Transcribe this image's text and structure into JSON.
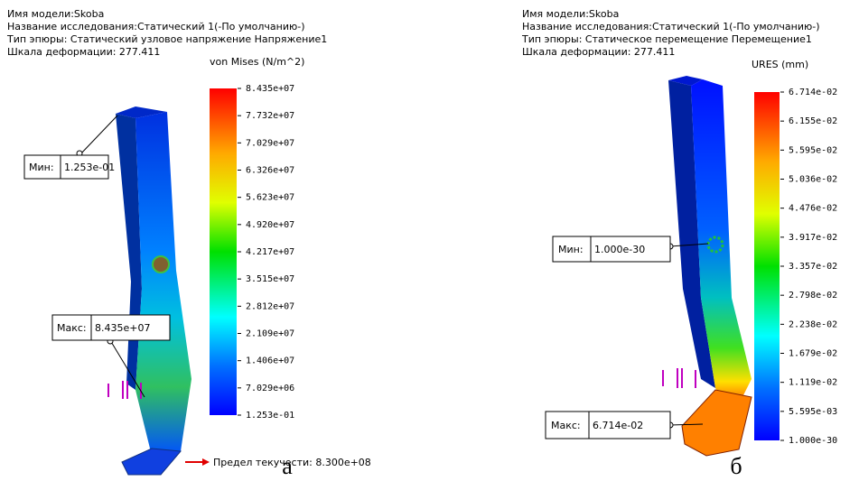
{
  "panels": [
    {
      "header": [
        "Имя модели:Skoba",
        "Название исследования:Статический 1(-По умолчанию-)",
        "Тип эпюры: Статический узловое напряжение Напряжение1",
        "Шкала деформации: 277.411"
      ],
      "legend_title": "von Mises (N/m^2)",
      "legend_labels": [
        "8.435e+07",
        "7.732e+07",
        "7.029e+07",
        "6.326e+07",
        "5.623e+07",
        "4.920e+07",
        "4.217e+07",
        "3.515e+07",
        "2.812e+07",
        "2.109e+07",
        "1.406e+07",
        "7.029e+06",
        "1.253e-01"
      ],
      "min_label": "Мин:",
      "min_value": "1.253e-01",
      "max_label": "Макс:",
      "max_value": "8.435e+07",
      "yield_text": "Предел текучести: 8.300e+08",
      "caption": "а"
    },
    {
      "header": [
        "Имя модели:Skoba",
        "Название исследования:Статический 1(-По умолчанию-)",
        "Тип эпюры: Статическое перемещение Перемещение1",
        "Шкала деформации: 277.411"
      ],
      "legend_title": "URES (mm)",
      "legend_labels": [
        "6.714e-02",
        "6.155e-02",
        "5.595e-02",
        "5.036e-02",
        "4.476e-02",
        "3.917e-02",
        "3.357e-02",
        "2.798e-02",
        "2.238e-02",
        "1.679e-02",
        "1.119e-02",
        "5.595e-03",
        "1.000e-30"
      ],
      "min_label": "Мин:",
      "min_value": "1.000e-30",
      "max_label": "Макс:",
      "max_value": "6.714e-02",
      "caption": "б"
    }
  ]
}
